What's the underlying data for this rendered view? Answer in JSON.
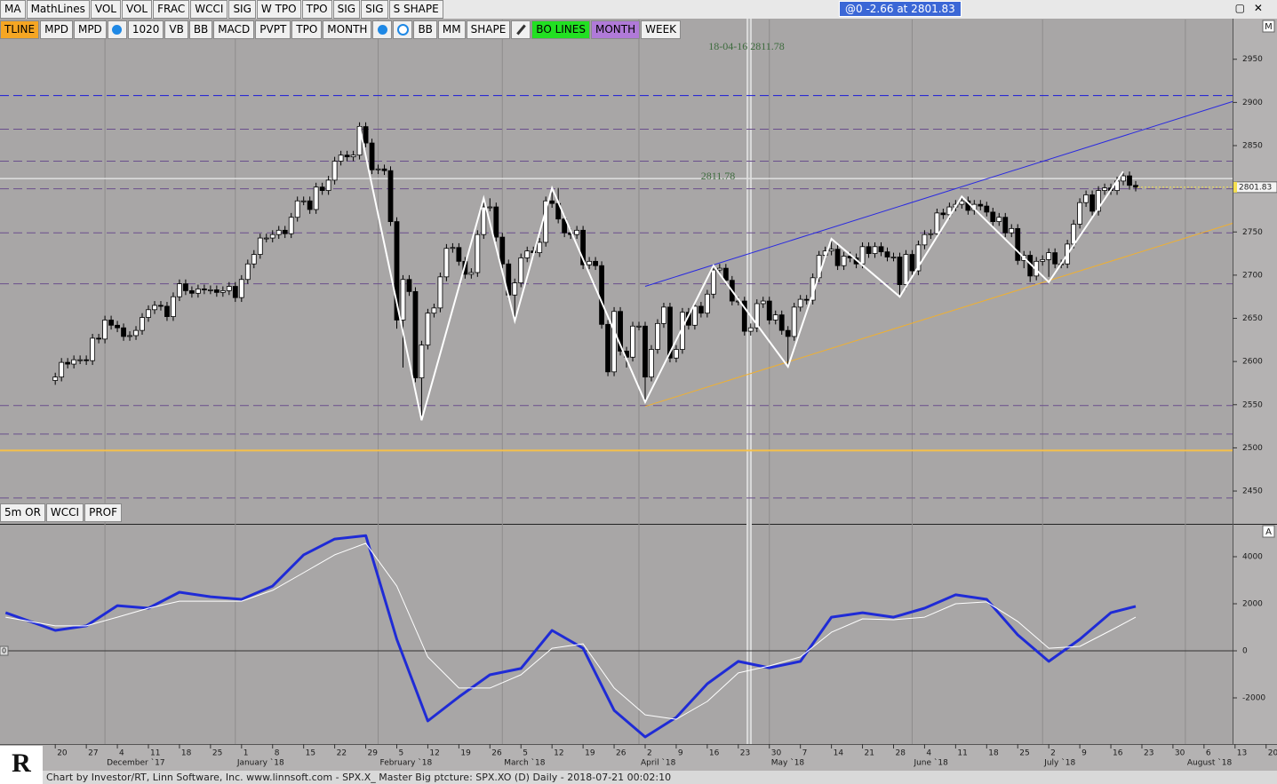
{
  "toolbar": {
    "row1": [
      "MA",
      "MathLines",
      "VOL",
      "VOL",
      "FRAC",
      "WCCI",
      "SIG",
      "W TPO",
      "TPO",
      "SIG",
      "SIG",
      "S SHAPE"
    ],
    "row2": [
      "TLINE",
      "MPD",
      "MPD",
      "1020",
      "VB",
      "BB",
      "MACD",
      "PVPT",
      "TPO",
      "MONTH",
      "BB",
      "MM",
      "SHAPE",
      "BO LINES",
      "MONTH",
      "WEEK"
    ],
    "quote": "@0  -2.66 at 2801.83",
    "indicator_buttons": [
      "5m OR",
      "WCCI",
      "PROF"
    ]
  },
  "footer": "Chart by Investor/RT, Linn Software, Inc. www.linnsoft.com - SPX.X_ Master Big ptcture: SPX.XO (D) Daily - 2018-07-21 00:02:10",
  "logo": "R",
  "chart_data": [
    {
      "type": "candlestick",
      "pane_label": "M",
      "up_color": "#ffffff",
      "down_color": "#000000",
      "xlim": [
        -8.9,
        189.6
      ],
      "ylim": [
        2412,
        2996
      ],
      "yticks": [
        2450,
        2500,
        2550,
        2600,
        2650,
        2700,
        2750,
        2800,
        2850,
        2900,
        2950
      ],
      "xticks": [
        {
          "value": 0,
          "label": "20"
        },
        {
          "value": 5,
          "label": "27"
        },
        {
          "value": 10,
          "label": "4"
        },
        {
          "value": 15,
          "label": "11"
        },
        {
          "value": 20,
          "label": "18"
        },
        {
          "value": 25,
          "label": "25"
        },
        {
          "value": 30,
          "label": "1"
        },
        {
          "value": 35,
          "label": "8"
        },
        {
          "value": 40,
          "label": "15"
        },
        {
          "value": 45,
          "label": "22"
        },
        {
          "value": 50,
          "label": "29"
        },
        {
          "value": 55,
          "label": "5"
        },
        {
          "value": 60,
          "label": "12"
        },
        {
          "value": 65,
          "label": "19"
        },
        {
          "value": 70,
          "label": "26"
        },
        {
          "value": 75,
          "label": "5"
        },
        {
          "value": 80,
          "label": "12"
        },
        {
          "value": 85,
          "label": "19"
        },
        {
          "value": 90,
          "label": "26"
        },
        {
          "value": 95,
          "label": "2"
        },
        {
          "value": 100,
          "label": "9"
        },
        {
          "value": 105,
          "label": "16"
        },
        {
          "value": 110,
          "label": "23"
        },
        {
          "value": 115,
          "label": "30"
        },
        {
          "value": 120,
          "label": "7"
        },
        {
          "value": 125,
          "label": "14"
        },
        {
          "value": 130,
          "label": "21"
        },
        {
          "value": 135,
          "label": "28"
        },
        {
          "value": 140,
          "label": "4"
        },
        {
          "value": 145,
          "label": "11"
        },
        {
          "value": 150,
          "label": "18"
        },
        {
          "value": 155,
          "label": "25"
        },
        {
          "value": 160,
          "label": "2"
        },
        {
          "value": 165,
          "label": "9"
        },
        {
          "value": 170,
          "label": "16"
        },
        {
          "value": 175,
          "label": "23"
        },
        {
          "value": 180,
          "label": "30"
        },
        {
          "value": 185,
          "label": "6"
        },
        {
          "value": 190,
          "label": "13"
        },
        {
          "value": 195,
          "label": "20"
        }
      ],
      "month_ticks": [
        {
          "value": 8,
          "label": "December `17"
        },
        {
          "value": 29,
          "label": "January `18"
        },
        {
          "value": 52,
          "label": "February `18"
        },
        {
          "value": 72,
          "label": "March `18"
        },
        {
          "value": 94,
          "label": "April `18"
        },
        {
          "value": 115,
          "label": "May `18"
        },
        {
          "value": 138,
          "label": "June `18"
        },
        {
          "value": 159,
          "label": "July `18"
        },
        {
          "value": 182,
          "label": "August `18"
        }
      ],
      "open": [
        2578,
        2582,
        2599,
        2597,
        2602,
        2602,
        2601,
        2627,
        2626,
        2648,
        2642,
        2639,
        2629,
        2630,
        2636,
        2651,
        2660,
        2665,
        2664,
        2652,
        2675,
        2690,
        2682,
        2679,
        2684,
        2683,
        2683,
        2680,
        2682,
        2687,
        2674,
        2695,
        2713,
        2724,
        2743,
        2743,
        2747,
        2752,
        2748,
        2767,
        2786,
        2786,
        2776,
        2802,
        2798,
        2810,
        2832,
        2839,
        2837,
        2839,
        2872,
        2853,
        2822,
        2823,
        2821,
        2762,
        2648,
        2695,
        2681,
        2581,
        2619,
        2656,
        2662,
        2698,
        2731,
        2732,
        2716,
        2701,
        2703,
        2747,
        2779,
        2779,
        2744,
        2713,
        2677,
        2691,
        2720,
        2728,
        2726,
        2738,
        2786,
        2783,
        2765,
        2749,
        2747,
        2752,
        2712,
        2716,
        2711,
        2643,
        2588,
        2658,
        2612,
        2605,
        2641,
        2641,
        2582,
        2614,
        2644,
        2663,
        2604,
        2614,
        2657,
        2642,
        2664,
        2656,
        2678,
        2706,
        2708,
        2694,
        2670,
        2670,
        2635,
        2639,
        2667,
        2670,
        2648,
        2654,
        2636,
        2629,
        2663,
        2672,
        2671,
        2697,
        2723,
        2728,
        2730,
        2711,
        2722,
        2720,
        2713,
        2733,
        2725,
        2733,
        2727,
        2721,
        2721,
        2689,
        2724,
        2705,
        2735,
        2747,
        2748,
        2772,
        2770,
        2779,
        2782,
        2786,
        2775,
        2782,
        2780,
        2773,
        2762,
        2767,
        2749,
        2754,
        2717,
        2723,
        2699,
        2716,
        2718,
        2726,
        2713,
        2713,
        2736,
        2759,
        2784,
        2793,
        2774,
        2798,
        2801,
        2798,
        2809,
        2815,
        2804
      ],
      "high": [
        2587,
        2604,
        2604,
        2607,
        2607,
        2607,
        2632,
        2632,
        2653,
        2653,
        2647,
        2644,
        2635,
        2641,
        2656,
        2665,
        2670,
        2670,
        2669,
        2680,
        2695,
        2695,
        2687,
        2689,
        2689,
        2688,
        2688,
        2687,
        2692,
        2692,
        2700,
        2718,
        2729,
        2748,
        2748,
        2752,
        2757,
        2757,
        2772,
        2791,
        2791,
        2791,
        2807,
        2807,
        2815,
        2837,
        2844,
        2844,
        2844,
        2877,
        2877,
        2858,
        2828,
        2828,
        2826,
        2767,
        2700,
        2700,
        2686,
        2624,
        2661,
        2667,
        2703,
        2736,
        2737,
        2737,
        2721,
        2708,
        2752,
        2784,
        2789,
        2784,
        2749,
        2718,
        2696,
        2725,
        2733,
        2733,
        2743,
        2791,
        2796,
        2801,
        2770,
        2754,
        2757,
        2757,
        2721,
        2721,
        2716,
        2648,
        2663,
        2663,
        2617,
        2646,
        2646,
        2646,
        2619,
        2649,
        2668,
        2668,
        2619,
        2662,
        2662,
        2669,
        2669,
        2683,
        2711,
        2713,
        2713,
        2699,
        2675,
        2675,
        2644,
        2672,
        2675,
        2675,
        2659,
        2659,
        2641,
        2668,
        2677,
        2677,
        2702,
        2728,
        2733,
        2742,
        2735,
        2727,
        2727,
        2725,
        2738,
        2738,
        2738,
        2738,
        2732,
        2726,
        2726,
        2729,
        2729,
        2740,
        2752,
        2753,
        2777,
        2777,
        2784,
        2787,
        2791,
        2791,
        2787,
        2787,
        2785,
        2778,
        2772,
        2772,
        2759,
        2759,
        2728,
        2728,
        2721,
        2723,
        2731,
        2731,
        2718,
        2741,
        2764,
        2789,
        2798,
        2798,
        2803,
        2806,
        2806,
        2814,
        2820,
        2820,
        2809
      ],
      "low": [
        2573,
        2577,
        2592,
        2592,
        2597,
        2596,
        2596,
        2621,
        2621,
        2637,
        2634,
        2624,
        2624,
        2625,
        2631,
        2646,
        2655,
        2659,
        2647,
        2647,
        2670,
        2677,
        2674,
        2674,
        2678,
        2678,
        2675,
        2675,
        2677,
        2669,
        2669,
        2690,
        2708,
        2719,
        2738,
        2738,
        2742,
        2743,
        2743,
        2762,
        2781,
        2771,
        2771,
        2793,
        2793,
        2805,
        2827,
        2832,
        2832,
        2834,
        2848,
        2817,
        2817,
        2816,
        2757,
        2638,
        2593,
        2676,
        2576,
        2532,
        2614,
        2651,
        2657,
        2693,
        2726,
        2711,
        2696,
        2696,
        2698,
        2742,
        2774,
        2739,
        2708,
        2672,
        2647,
        2686,
        2715,
        2721,
        2721,
        2733,
        2778,
        2760,
        2744,
        2742,
        2742,
        2707,
        2707,
        2706,
        2638,
        2583,
        2583,
        2607,
        2593,
        2600,
        2636,
        2553,
        2577,
        2609,
        2639,
        2599,
        2599,
        2609,
        2637,
        2637,
        2651,
        2651,
        2673,
        2701,
        2689,
        2665,
        2665,
        2630,
        2630,
        2634,
        2662,
        2643,
        2643,
        2631,
        2594,
        2624,
        2658,
        2666,
        2666,
        2692,
        2718,
        2723,
        2706,
        2706,
        2715,
        2708,
        2708,
        2720,
        2720,
        2722,
        2716,
        2716,
        2675,
        2684,
        2700,
        2700,
        2730,
        2742,
        2743,
        2765,
        2765,
        2774,
        2777,
        2770,
        2770,
        2775,
        2768,
        2757,
        2757,
        2744,
        2744,
        2712,
        2708,
        2692,
        2694,
        2711,
        2698,
        2708,
        2708,
        2708,
        2731,
        2754,
        2779,
        2769,
        2769,
        2793,
        2793,
        2793,
        2804,
        2799,
        2797
      ],
      "close": [
        2582,
        2599,
        2597,
        2602,
        2602,
        2601,
        2627,
        2626,
        2648,
        2642,
        2639,
        2629,
        2630,
        2636,
        2651,
        2660,
        2665,
        2664,
        2652,
        2675,
        2690,
        2682,
        2679,
        2684,
        2683,
        2683,
        2680,
        2682,
        2687,
        2674,
        2695,
        2713,
        2724,
        2743,
        2743,
        2747,
        2752,
        2748,
        2767,
        2786,
        2786,
        2776,
        2802,
        2798,
        2810,
        2832,
        2839,
        2837,
        2839,
        2872,
        2853,
        2822,
        2823,
        2821,
        2762,
        2648,
        2695,
        2681,
        2581,
        2619,
        2656,
        2662,
        2698,
        2731,
        2732,
        2716,
        2701,
        2703,
        2747,
        2779,
        2779,
        2744,
        2713,
        2677,
        2691,
        2720,
        2728,
        2726,
        2738,
        2786,
        2783,
        2765,
        2749,
        2747,
        2752,
        2712,
        2716,
        2711,
        2643,
        2588,
        2658,
        2612,
        2605,
        2641,
        2641,
        2582,
        2614,
        2644,
        2663,
        2604,
        2614,
        2657,
        2642,
        2664,
        2656,
        2678,
        2706,
        2708,
        2694,
        2670,
        2670,
        2635,
        2639,
        2667,
        2670,
        2648,
        2654,
        2636,
        2629,
        2663,
        2672,
        2671,
        2697,
        2723,
        2728,
        2730,
        2711,
        2722,
        2720,
        2713,
        2733,
        2725,
        2733,
        2727,
        2721,
        2721,
        2689,
        2724,
        2705,
        2735,
        2747,
        2748,
        2772,
        2770,
        2779,
        2782,
        2786,
        2775,
        2782,
        2780,
        2773,
        2762,
        2767,
        2749,
        2754,
        2717,
        2723,
        2699,
        2716,
        2718,
        2726,
        2713,
        2713,
        2736,
        2759,
        2784,
        2793,
        2774,
        2798,
        2801,
        2798,
        2809,
        2815,
        2804,
        2801.83
      ],
      "last_price": 2801.83,
      "reference_line": 2811.78,
      "annotations": [
        {
          "text": "18-04-16  2811.78"
        },
        {
          "text": "2811.78"
        }
      ],
      "levels": [
        {
          "value": 2908,
          "color": "#1a1ad8",
          "dashed": true
        },
        {
          "value": 2869,
          "color": "#6a4f8c",
          "dashed": true
        },
        {
          "value": 2832,
          "color": "#6a4f8c",
          "dashed": true
        },
        {
          "value": 2800,
          "color": "#6a4f8c",
          "dashed": true
        },
        {
          "value": 2749,
          "color": "#6a4f8c",
          "dashed": true
        },
        {
          "value": 2690,
          "color": "#6a4f8c",
          "dashed": true
        },
        {
          "value": 2549,
          "color": "#6a4f8c",
          "dashed": true
        },
        {
          "value": 2516,
          "color": "#6a4f8c",
          "dashed": true
        },
        {
          "value": 2497,
          "color": "#f5c04a",
          "dashed": false
        },
        {
          "value": 2442,
          "color": "#6a4f8c",
          "dashed": true
        }
      ],
      "zigzag": {
        "color": "#ffffff",
        "x": [
          49,
          59,
          69,
          74,
          80,
          95,
          106,
          118,
          125,
          136,
          146,
          160,
          172
        ],
        "values": [
          2872,
          2532,
          2789,
          2647,
          2801,
          2553,
          2711,
          2594,
          2742,
          2675,
          2791,
          2692,
          2820
        ]
      },
      "trendlines": [
        {
          "color": "#2a2ae0",
          "x": [
            95,
            189.6
          ],
          "values": [
            2687,
            2901
          ]
        },
        {
          "color": "#f0b030",
          "x": [
            95,
            189.6
          ],
          "values": [
            2548,
            2760
          ]
        }
      ]
    },
    {
      "type": "line",
      "pane_label": "A",
      "xlim": [
        -8.9,
        189.6
      ],
      "ylim": [
        -3962,
        5321
      ],
      "yticks": [
        -2000,
        0,
        2000,
        4000
      ],
      "x": [
        -8,
        0,
        5,
        10,
        15,
        20,
        25,
        30,
        35,
        40,
        45,
        50,
        55,
        60,
        65,
        70,
        75,
        80,
        85,
        90,
        95,
        100,
        105,
        110,
        115,
        120,
        125,
        130,
        135,
        140,
        145,
        150,
        155,
        160,
        165,
        170,
        174
      ],
      "series": [
        {
          "color": "#1f2bd6",
          "line_width": 3,
          "values": [
            1620,
            870,
            1060,
            1920,
            1810,
            2490,
            2300,
            2190,
            2750,
            4080,
            4750,
            4900,
            490,
            -2980,
            -1960,
            -1020,
            -750,
            870,
            110,
            -2530,
            -3660,
            -2830,
            -1400,
            -450,
            -720,
            -450,
            1430,
            1620,
            1430,
            1810,
            2380,
            2190,
            680,
            -450,
            490,
            1620,
            1890
          ]
        },
        {
          "color": "#ffffff",
          "line_width": 1,
          "values": [
            1430,
            1060,
            1060,
            1430,
            1810,
            2110,
            2110,
            2110,
            2570,
            3320,
            4080,
            4570,
            2750,
            -260,
            -1580,
            -1580,
            -1020,
            110,
            300,
            -1580,
            -2720,
            -2910,
            -2150,
            -940,
            -640,
            -260,
            790,
            1360,
            1320,
            1430,
            2000,
            2080,
            1250,
            110,
            190,
            870,
            1430
          ]
        }
      ]
    }
  ]
}
